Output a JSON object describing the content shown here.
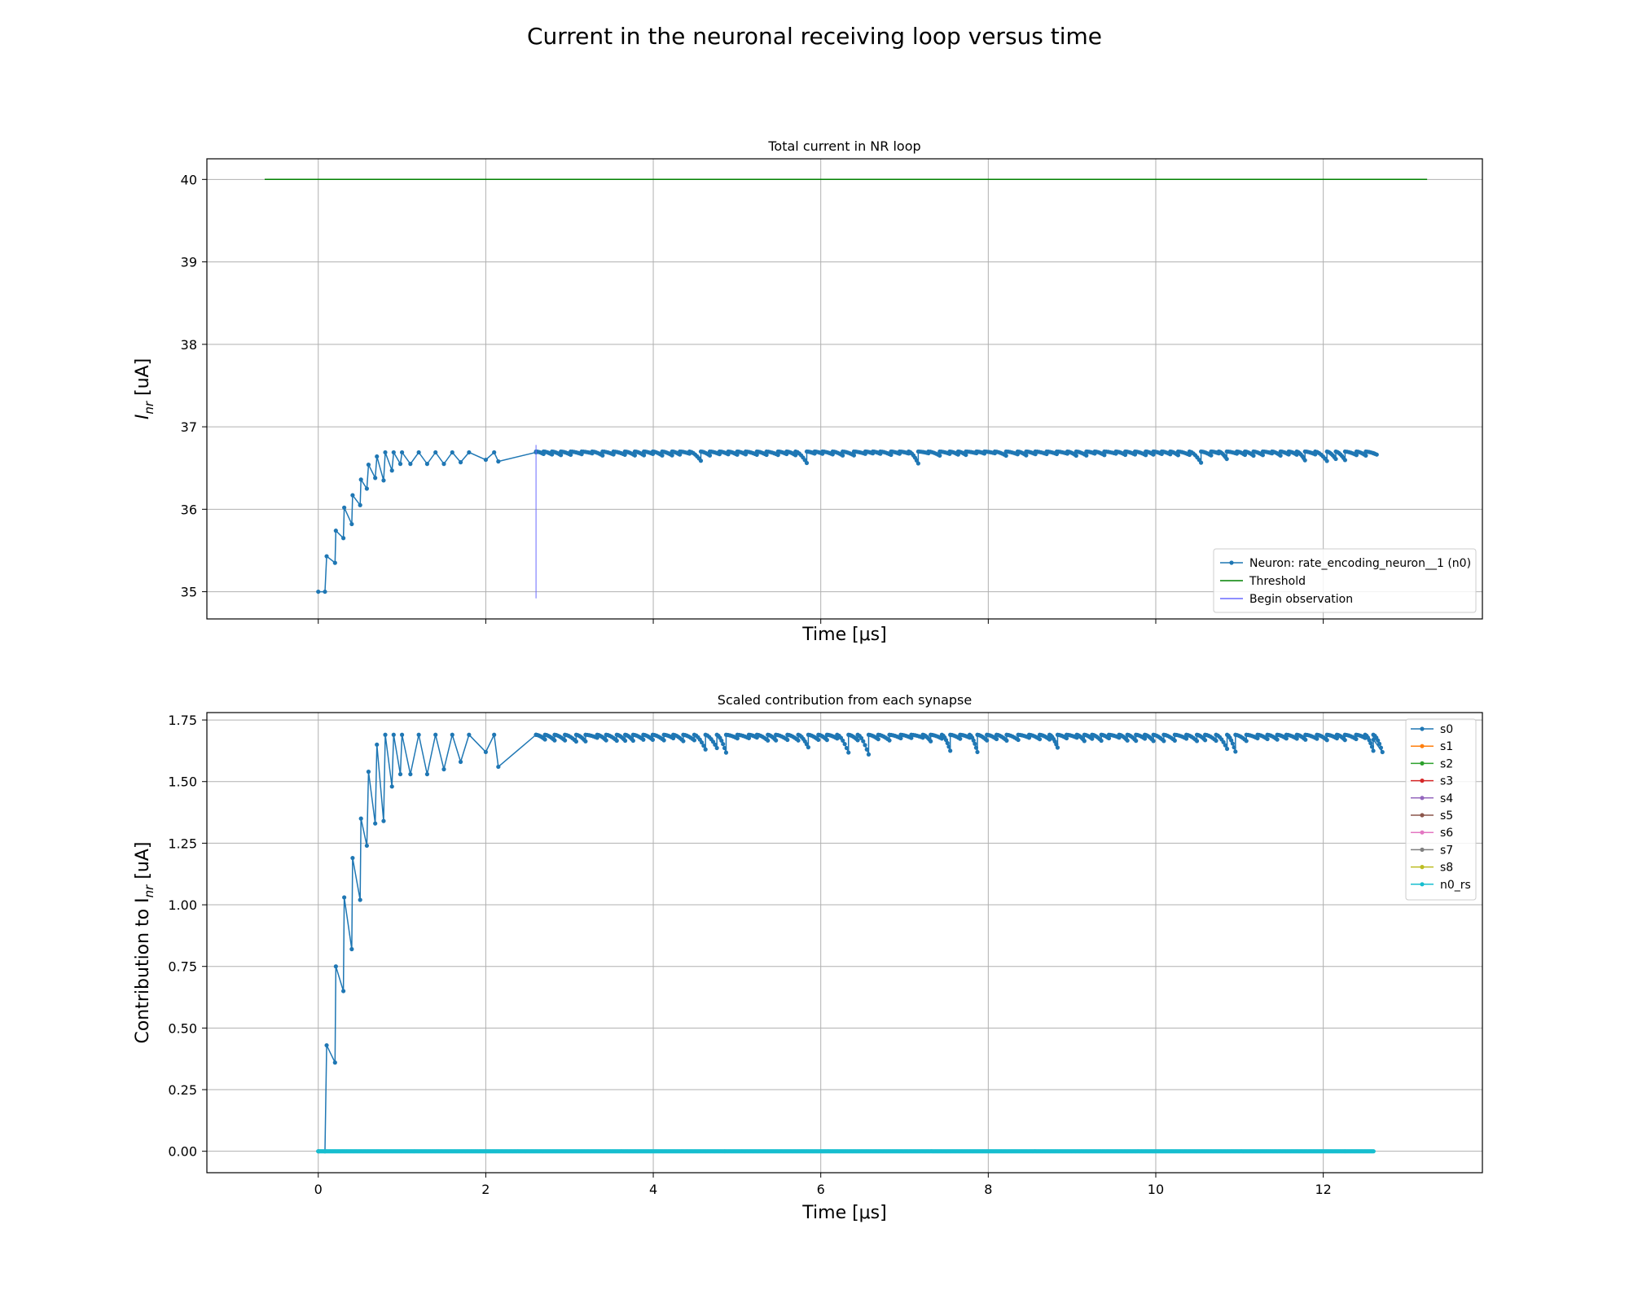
{
  "figure": {
    "suptitle": "Current in the neuronal receiving loop versus time"
  },
  "chart_data": [
    {
      "type": "line",
      "title": "Total current in NR loop",
      "xlabel": "Time [μs]",
      "ylabel": "I_nr [uA]",
      "ylabel_main": "I",
      "ylabel_sub": "nr",
      "ylabel_suffix": " [uA]",
      "xlim": [
        -1.33,
        13.9
      ],
      "ylim": [
        34.67,
        40.25
      ],
      "xticks": [
        0,
        2,
        4,
        6,
        8,
        10,
        12
      ],
      "show_xticklabels": false,
      "yticks": [
        35,
        36,
        37,
        38,
        39,
        40
      ],
      "yticklabels": [
        "35",
        "36",
        "37",
        "38",
        "39",
        "40"
      ],
      "grid": true,
      "legend_position": "lower-right",
      "series": [
        {
          "name": "Neuron: rate_encoding_neuron__1 (n0)",
          "color": "#1f77b4",
          "marker": "dot",
          "plateau_max": 36.7,
          "x": [
            0.0,
            0.08,
            0.1,
            0.2,
            0.21,
            0.3,
            0.31,
            0.4,
            0.41,
            0.5,
            0.51,
            0.58,
            0.6,
            0.68,
            0.7,
            0.78,
            0.8,
            0.88,
            0.9,
            0.98,
            1.0,
            1.1,
            1.2,
            1.3,
            1.4,
            1.5,
            1.6,
            1.7,
            1.8,
            2.0,
            2.1,
            2.15,
            2.6,
            12.6
          ],
          "y": [
            35.0,
            35.0,
            35.43,
            35.35,
            35.74,
            35.65,
            36.02,
            35.82,
            36.17,
            36.05,
            36.36,
            36.25,
            36.54,
            36.38,
            36.64,
            36.35,
            36.69,
            36.47,
            36.69,
            36.55,
            36.69,
            36.55,
            36.69,
            36.55,
            36.69,
            36.55,
            36.69,
            36.57,
            36.69,
            36.6,
            36.69,
            36.58,
            36.69,
            36.68
          ]
        },
        {
          "name": "Threshold",
          "color": "#008000",
          "x": [
            -0.64,
            13.24
          ],
          "y": [
            40.0,
            40.0
          ]
        },
        {
          "name": "Begin observation",
          "color": "#6a6aff",
          "x": [
            2.6,
            2.6
          ],
          "y": [
            34.92,
            36.78
          ]
        }
      ]
    },
    {
      "type": "line",
      "title": "Scaled contribution from each synapse",
      "xlabel": "Time [μs]",
      "ylabel": "Contribution to I_nr [uA]",
      "ylabel_main": "Contribution to I",
      "ylabel_sub": "nr",
      "ylabel_suffix": " [uA]",
      "xlim": [
        -1.33,
        13.9
      ],
      "ylim": [
        -0.087,
        1.78
      ],
      "xticks": [
        0,
        2,
        4,
        6,
        8,
        10,
        12
      ],
      "xticklabels": [
        "0",
        "2",
        "4",
        "6",
        "8",
        "10",
        "12"
      ],
      "show_xticklabels": true,
      "yticks": [
        0.0,
        0.25,
        0.5,
        0.75,
        1.0,
        1.25,
        1.5,
        1.75
      ],
      "yticklabels": [
        "0.00",
        "0.25",
        "0.50",
        "0.75",
        "1.00",
        "1.25",
        "1.50",
        "1.75"
      ],
      "grid": true,
      "legend_position": "upper-right",
      "series": [
        {
          "name": "s0",
          "color": "#1f77b4",
          "marker": "dot",
          "plateau_max": 1.69,
          "x": [
            0.0,
            0.08,
            0.1,
            0.2,
            0.21,
            0.3,
            0.31,
            0.4,
            0.41,
            0.5,
            0.51,
            0.58,
            0.6,
            0.68,
            0.7,
            0.78,
            0.8,
            0.88,
            0.9,
            0.98,
            1.0,
            1.1,
            1.2,
            1.3,
            1.4,
            1.5,
            1.6,
            1.7,
            1.8,
            2.0,
            2.1,
            2.15,
            2.6,
            12.6
          ],
          "y": [
            0.0,
            0.0,
            0.43,
            0.36,
            0.75,
            0.65,
            1.03,
            0.82,
            1.19,
            1.02,
            1.35,
            1.24,
            1.54,
            1.33,
            1.65,
            1.34,
            1.69,
            1.48,
            1.69,
            1.53,
            1.69,
            1.53,
            1.69,
            1.53,
            1.69,
            1.55,
            1.69,
            1.58,
            1.69,
            1.62,
            1.69,
            1.56,
            1.69,
            1.67
          ]
        },
        {
          "name": "s1",
          "color": "#ff7f0e",
          "x": [
            0.0,
            12.6
          ],
          "y": [
            0.0,
            0.0
          ]
        },
        {
          "name": "s2",
          "color": "#2ca02c",
          "x": [
            0.0,
            12.6
          ],
          "y": [
            0.0,
            0.0
          ]
        },
        {
          "name": "s3",
          "color": "#d62728",
          "x": [
            0.0,
            12.6
          ],
          "y": [
            0.0,
            0.0
          ]
        },
        {
          "name": "s4",
          "color": "#9467bd",
          "x": [
            0.0,
            12.6
          ],
          "y": [
            0.0,
            0.0
          ]
        },
        {
          "name": "s5",
          "color": "#8c564b",
          "x": [
            0.0,
            12.6
          ],
          "y": [
            0.0,
            0.0
          ]
        },
        {
          "name": "s6",
          "color": "#e377c2",
          "x": [
            0.0,
            12.6
          ],
          "y": [
            0.0,
            0.0
          ]
        },
        {
          "name": "s7",
          "color": "#7f7f7f",
          "x": [
            0.0,
            12.6
          ],
          "y": [
            0.0,
            0.0
          ]
        },
        {
          "name": "s8",
          "color": "#bcbd22",
          "x": [
            0.0,
            12.6
          ],
          "y": [
            0.0,
            0.0
          ]
        },
        {
          "name": "n0_rs",
          "color": "#17becf",
          "marker": "dot",
          "x": [
            0.0,
            12.6
          ],
          "y": [
            0.0,
            0.0
          ]
        }
      ]
    }
  ]
}
